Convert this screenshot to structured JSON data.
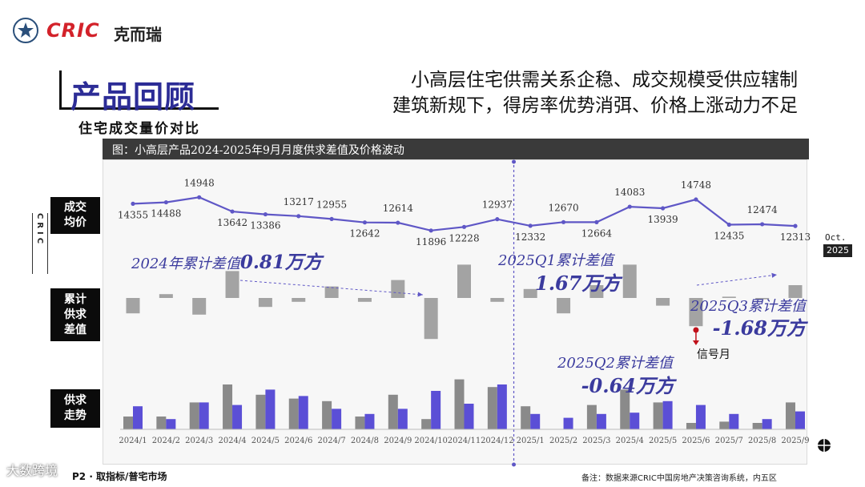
{
  "brand": {
    "logo_text": "CRIC",
    "logo_cn": "克而瑞"
  },
  "page": {
    "title": "产品回顾",
    "subtitle": "住宅成交量价对比",
    "headline_line1": "小高层住宅供需关系企稳、成交规模受供应辖制",
    "headline_line2": "建筑新规下，得房率优势消弭、价格上涨动力不足"
  },
  "chart_banner": "图：小高层产品2024-2025年9月月度供求差值及价格波动",
  "row_labels": {
    "price": [
      "成交",
      "均价"
    ],
    "cumulative": [
      "累计",
      "供求",
      "差值"
    ],
    "supply": [
      "供求",
      "走势"
    ]
  },
  "side": {
    "cric_vertical": "CRIC",
    "oct": "Oct.",
    "year": "2025"
  },
  "annotations": {
    "a2024_prefix": "2024年累计差值",
    "a2024_value": "0.81万方",
    "q1_prefix": "2025Q1累计差值",
    "q1_value": "1.67万方",
    "q2_prefix": "2025Q2累计差值",
    "q2_value": "-0.64万方",
    "q3_prefix": "2025Q3累计差值",
    "q3_value": "-1.68万方",
    "signal_month": "信号月"
  },
  "footer": {
    "left": "P2 · 取指标/普宅市场",
    "note": "备注：数据来源CRIC中国房地产决策咨询系统，内五区"
  },
  "watermark": "大数跨境",
  "colors": {
    "price_line": "#5f57c6",
    "gray": "#a3a3a3",
    "blue_bar": "#5b4fd6",
    "annotation": "#3b3b9e",
    "signal_red": "#c0101a"
  },
  "chart_data": {
    "type": "line+bar",
    "categories": [
      "2024/1",
      "2024/2",
      "2024/3",
      "2024/4",
      "2024/5",
      "2024/6",
      "2024/7",
      "2024/8",
      "2024/9",
      "2024/10",
      "2024/11",
      "2024/12",
      "2025/1",
      "2025/2",
      "2025/3",
      "2025/4",
      "2025/5",
      "2025/6",
      "2025/7",
      "2025/8",
      "2025/9"
    ],
    "price": [
      14355,
      14488,
      14948,
      13642,
      13386,
      13217,
      12955,
      12642,
      12614,
      11896,
      12228,
      12937,
      12332,
      12670,
      12664,
      14083,
      13939,
      14748,
      12435,
      12474,
      12313
    ],
    "cumulative_gap": [
      -1.2,
      0.3,
      -1.3,
      2.1,
      -0.7,
      -0.3,
      0.9,
      -0.3,
      1.4,
      -3.2,
      2.6,
      -0.3,
      0.7,
      -1.2,
      1.0,
      2.6,
      -0.6,
      -2.2,
      0.1,
      -0.1,
      1.0
    ],
    "supply": [
      1.0,
      1.0,
      2.1,
      3.5,
      2.7,
      2.4,
      2.2,
      1.0,
      2.7,
      0.8,
      3.9,
      3.3,
      1.8,
      0,
      1.9,
      3.1,
      2.1,
      0.5,
      0.6,
      0.5,
      2.1
    ],
    "transaction": [
      1.8,
      0.8,
      2.1,
      1.9,
      3.1,
      2.6,
      1.6,
      1.2,
      1.6,
      3.0,
      2.0,
      3.5,
      1.2,
      0.9,
      1.2,
      1.3,
      2.2,
      1.9,
      1.2,
      0.8,
      1.4
    ],
    "divider_after": "2024/12",
    "signal_month": "2025/6"
  }
}
